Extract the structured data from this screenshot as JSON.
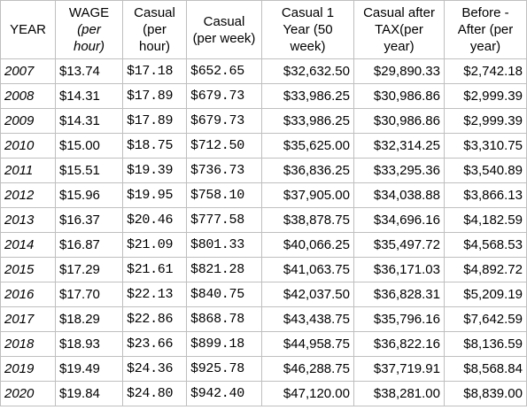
{
  "headers": {
    "year": [
      "YEAR"
    ],
    "wage": [
      "WAGE",
      "(per",
      "hour)"
    ],
    "casual_hour": [
      "Casual",
      "(per",
      "hour)"
    ],
    "casual_week": [
      "Casual",
      "(per week)"
    ],
    "casual_year": [
      "Casual  1",
      "Year (50",
      "week)"
    ],
    "after_tax": [
      "Casual after",
      "TAX(per",
      "year)"
    ],
    "before_after": [
      "Before -",
      "After (per",
      "year)"
    ]
  },
  "rows": [
    {
      "year": "2007",
      "wage": "$13.74",
      "casual_hour": "$17.18",
      "casual_week": "$652.65",
      "casual_year": "$32,632.50",
      "after_tax": "$29,890.33",
      "before_after": "$2,742.18"
    },
    {
      "year": "2008",
      "wage": "$14.31",
      "casual_hour": "$17.89",
      "casual_week": "$679.73",
      "casual_year": "$33,986.25",
      "after_tax": "$30,986.86",
      "before_after": "$2,999.39"
    },
    {
      "year": "2009",
      "wage": "$14.31",
      "casual_hour": "$17.89",
      "casual_week": "$679.73",
      "casual_year": "$33,986.25",
      "after_tax": "$30,986.86",
      "before_after": "$2,999.39"
    },
    {
      "year": "2010",
      "wage": "$15.00",
      "casual_hour": "$18.75",
      "casual_week": "$712.50",
      "casual_year": "$35,625.00",
      "after_tax": "$32,314.25",
      "before_after": "$3,310.75"
    },
    {
      "year": "2011",
      "wage": "$15.51",
      "casual_hour": "$19.39",
      "casual_week": "$736.73",
      "casual_year": "$36,836.25",
      "after_tax": "$33,295.36",
      "before_after": "$3,540.89"
    },
    {
      "year": "2012",
      "wage": "$15.96",
      "casual_hour": "$19.95",
      "casual_week": "$758.10",
      "casual_year": "$37,905.00",
      "after_tax": "$34,038.88",
      "before_after": "$3,866.13"
    },
    {
      "year": "2013",
      "wage": "$16.37",
      "casual_hour": "$20.46",
      "casual_week": "$777.58",
      "casual_year": "$38,878.75",
      "after_tax": "$34,696.16",
      "before_after": "$4,182.59"
    },
    {
      "year": "2014",
      "wage": "$16.87",
      "casual_hour": "$21.09",
      "casual_week": "$801.33",
      "casual_year": "$40,066.25",
      "after_tax": "$35,497.72",
      "before_after": "$4,568.53"
    },
    {
      "year": "2015",
      "wage": "$17.29",
      "casual_hour": "$21.61",
      "casual_week": "$821.28",
      "casual_year": "$41,063.75",
      "after_tax": "$36,171.03",
      "before_after": "$4,892.72"
    },
    {
      "year": "2016",
      "wage": "$17.70",
      "casual_hour": "$22.13",
      "casual_week": "$840.75",
      "casual_year": "$42,037.50",
      "after_tax": "$36,828.31",
      "before_after": "$5,209.19"
    },
    {
      "year": "2017",
      "wage": "$18.29",
      "casual_hour": "$22.86",
      "casual_week": "$868.78",
      "casual_year": "$43,438.75",
      "after_tax": "$35,796.16",
      "before_after": "$7,642.59"
    },
    {
      "year": "2018",
      "wage": "$18.93",
      "casual_hour": "$23.66",
      "casual_week": "$899.18",
      "casual_year": "$44,958.75",
      "after_tax": "$36,822.16",
      "before_after": "$8,136.59"
    },
    {
      "year": "2019",
      "wage": "$19.49",
      "casual_hour": "$24.36",
      "casual_week": "$925.78",
      "casual_year": "$46,288.75",
      "after_tax": "$37,719.91",
      "before_after": "$8,568.84"
    },
    {
      "year": "2020",
      "wage": "$19.84",
      "casual_hour": "$24.80",
      "casual_week": "$942.40",
      "casual_year": "$47,120.00",
      "after_tax": "$38,281.00",
      "before_after": "$8,839.00"
    }
  ]
}
